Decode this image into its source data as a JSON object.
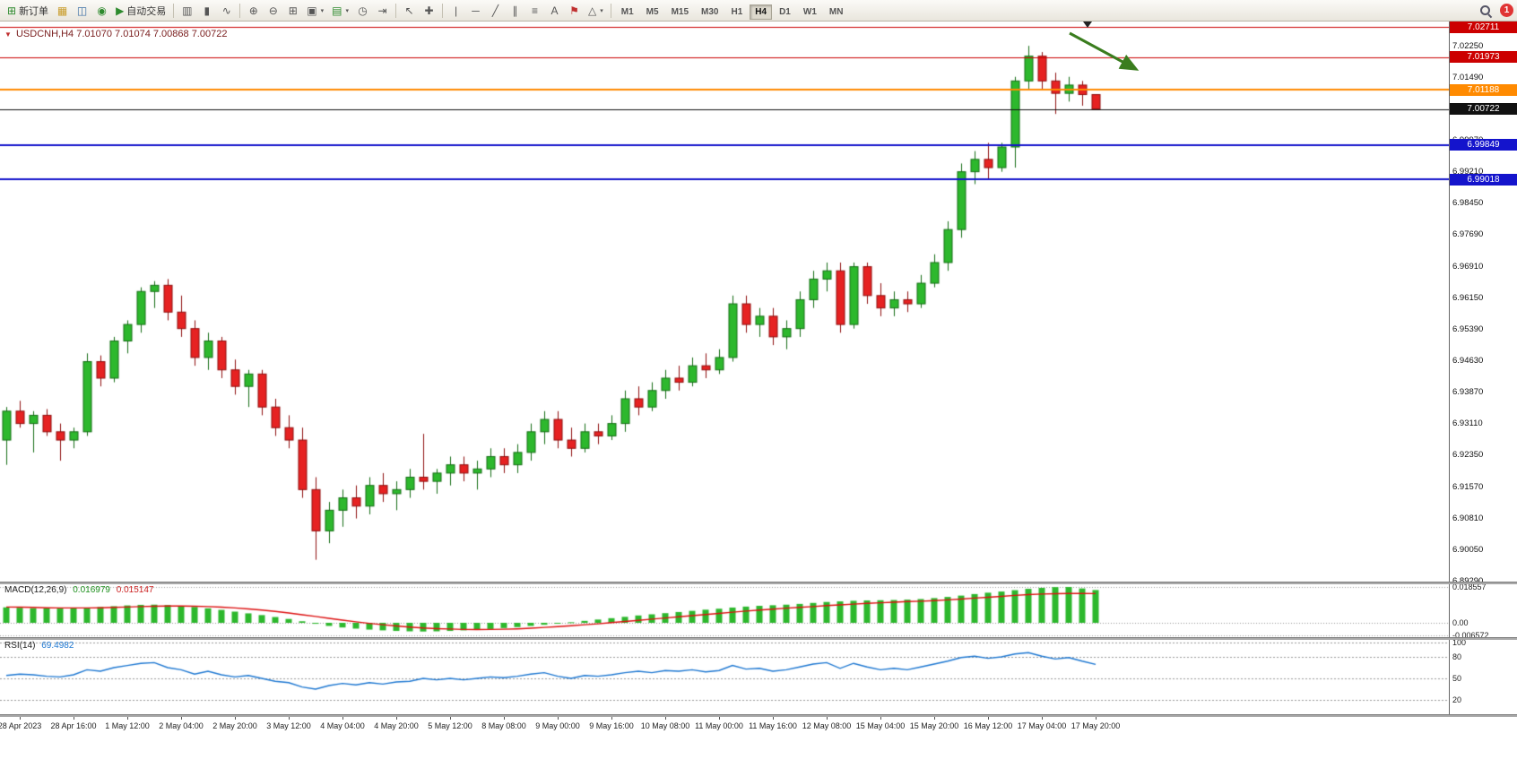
{
  "toolbar": {
    "new_order_label": "新订单",
    "autotrade_label": "自动交易",
    "timeframes": [
      "M1",
      "M5",
      "M15",
      "M30",
      "H1",
      "H4",
      "D1",
      "W1",
      "MN"
    ],
    "active_timeframe": "H4",
    "notification_count": "1",
    "icons": {
      "new_order": "⊞",
      "profile": "▦",
      "data_window": "◫",
      "market_watch": "◉",
      "autotrade": "▶",
      "bars_chart": "▥",
      "candle_chart": "▮",
      "line_chart": "∿",
      "zoom_in": "⊕",
      "zoom_out": "⊖",
      "tile_windows": "⊞",
      "cascade_windows": "▣",
      "new_chart": "▤",
      "clock": "◷",
      "chart_shift": "⇥",
      "cursor": "↖",
      "crosshair": "✚",
      "vertical_line": "|",
      "horizontal_line": "─",
      "trendline": "╱",
      "channel": "∥",
      "fibonacci": "≡",
      "text": "A",
      "label": "⚑",
      "shapes": "△",
      "caret": "▾"
    }
  },
  "chart": {
    "title_symbol": "USDCNH,H4",
    "title_ohlc": "7.01070 7.01074 7.00868 7.00722"
  },
  "price_scale": {
    "labels": [
      "7.02250",
      "7.01490",
      "7.00730",
      "6.99970",
      "6.99210",
      "6.98450",
      "6.97690",
      "6.96910",
      "6.96150",
      "6.95390",
      "6.94630",
      "6.93870",
      "6.93110",
      "6.92350",
      "6.91570",
      "6.90810",
      "6.90050",
      "6.89290"
    ]
  },
  "price_lines": [
    {
      "label": "7.02711",
      "value": 7.02711,
      "color": "#cc0000",
      "width": 1
    },
    {
      "label": "7.01973",
      "value": 7.01973,
      "color": "#cc0000",
      "width": 1
    },
    {
      "label": "7.01188",
      "value": 7.01188,
      "color": "#ff8a00",
      "width": 2
    },
    {
      "label": "7.00722",
      "value": 7.00722,
      "color": "#111111",
      "width": 1
    },
    {
      "label": "6.99849",
      "value": 6.99849,
      "color": "#1414cc",
      "width": 2
    },
    {
      "label": "6.99018",
      "value": 6.99018,
      "color": "#1414cc",
      "width": 2
    }
  ],
  "time_axis": {
    "labels": [
      "28 Apr 2023",
      "28 Apr 16:00",
      "1 May 12:00",
      "2 May 04:00",
      "2 May 20:00",
      "3 May 12:00",
      "4 May 04:00",
      "4 May 20:00",
      "5 May 12:00",
      "8 May 08:00",
      "9 May 00:00",
      "9 May 16:00",
      "10 May 08:00",
      "11 May 00:00",
      "11 May 16:00",
      "12 May 08:00",
      "15 May 04:00",
      "15 May 20:00",
      "16 May 12:00",
      "17 May 04:00",
      "17 May 20:00"
    ]
  },
  "macd": {
    "name": "MACD(12,26,9)",
    "value_main": "0.016979",
    "value_signal": "0.015147",
    "scale_labels": [
      "0.018557",
      "0.00",
      "-0.006572"
    ]
  },
  "rsi": {
    "name": "RSI(14)",
    "value": "69.4982",
    "scale_labels": [
      "100",
      "80",
      "50",
      "20"
    ]
  },
  "annotations": {
    "arrow_color": "#3a7d1e",
    "arrow_direction": "down-right"
  },
  "colors": {
    "bull": "#2db82d",
    "bull_border": "#156e15",
    "bear": "#e62222",
    "bear_border": "#8f0f0f",
    "macd_hist": "#2db82d",
    "macd_signal": "#dd1111",
    "rsi_line": "#1e78d2"
  },
  "chart_data": {
    "type": "candlestick",
    "symbol": "USDCNH",
    "timeframe": "H4",
    "title": "USDCNH,H4",
    "candles": [
      [
        6.927,
        6.935,
        6.921,
        6.934
      ],
      [
        6.934,
        6.9365,
        6.93,
        6.931
      ],
      [
        6.931,
        6.934,
        6.924,
        6.933
      ],
      [
        6.933,
        6.9345,
        6.928,
        6.929
      ],
      [
        6.929,
        6.931,
        6.922,
        6.927
      ],
      [
        6.927,
        6.93,
        6.925,
        6.929
      ],
      [
        6.929,
        6.948,
        6.928,
        6.946
      ],
      [
        6.946,
        6.9475,
        6.94,
        6.942
      ],
      [
        6.942,
        6.952,
        6.941,
        6.951
      ],
      [
        6.951,
        6.956,
        6.948,
        6.955
      ],
      [
        6.955,
        6.964,
        6.953,
        6.963
      ],
      [
        6.963,
        6.9655,
        6.959,
        6.9645
      ],
      [
        6.9645,
        6.966,
        6.956,
        6.958
      ],
      [
        6.958,
        6.962,
        6.952,
        6.954
      ],
      [
        6.954,
        6.956,
        6.945,
        6.947
      ],
      [
        6.947,
        6.953,
        6.944,
        6.951
      ],
      [
        6.951,
        6.952,
        6.942,
        6.944
      ],
      [
        6.944,
        6.9465,
        6.938,
        6.94
      ],
      [
        6.94,
        6.944,
        6.935,
        6.943
      ],
      [
        6.943,
        6.944,
        6.933,
        6.935
      ],
      [
        6.935,
        6.937,
        6.928,
        6.93
      ],
      [
        6.93,
        6.933,
        6.925,
        6.927
      ],
      [
        6.927,
        6.93,
        6.913,
        6.915
      ],
      [
        6.915,
        6.918,
        6.898,
        6.905
      ],
      [
        6.905,
        6.912,
        6.902,
        6.91
      ],
      [
        6.91,
        6.915,
        6.906,
        6.913
      ],
      [
        6.913,
        6.916,
        6.908,
        6.911
      ],
      [
        6.911,
        6.918,
        6.909,
        6.916
      ],
      [
        6.916,
        6.919,
        6.912,
        6.914
      ],
      [
        6.914,
        6.917,
        6.91,
        6.915
      ],
      [
        6.915,
        6.92,
        6.913,
        6.918
      ],
      [
        6.918,
        6.9285,
        6.915,
        6.917
      ],
      [
        6.917,
        6.92,
        6.914,
        6.919
      ],
      [
        6.919,
        6.923,
        6.916,
        6.921
      ],
      [
        6.921,
        6.923,
        6.917,
        6.919
      ],
      [
        6.919,
        6.922,
        6.915,
        6.92
      ],
      [
        6.92,
        6.925,
        6.918,
        6.923
      ],
      [
        6.923,
        6.925,
        6.919,
        6.921
      ],
      [
        6.921,
        6.926,
        6.919,
        6.924
      ],
      [
        6.924,
        6.931,
        6.922,
        6.929
      ],
      [
        6.929,
        6.934,
        6.926,
        6.932
      ],
      [
        6.932,
        6.934,
        6.925,
        6.927
      ],
      [
        6.927,
        6.93,
        6.923,
        6.925
      ],
      [
        6.925,
        6.931,
        6.924,
        6.929
      ],
      [
        6.929,
        6.931,
        6.926,
        6.928
      ],
      [
        6.928,
        6.933,
        6.927,
        6.931
      ],
      [
        6.931,
        6.939,
        6.929,
        6.937
      ],
      [
        6.937,
        6.94,
        6.933,
        6.935
      ],
      [
        6.935,
        6.941,
        6.934,
        6.939
      ],
      [
        6.939,
        6.944,
        6.937,
        6.942
      ],
      [
        6.942,
        6.945,
        6.939,
        6.941
      ],
      [
        6.941,
        6.947,
        6.94,
        6.945
      ],
      [
        6.945,
        6.948,
        6.942,
        6.944
      ],
      [
        6.944,
        6.949,
        6.943,
        6.947
      ],
      [
        6.947,
        6.962,
        6.946,
        6.96
      ],
      [
        6.96,
        6.962,
        6.953,
        6.955
      ],
      [
        6.955,
        6.959,
        6.952,
        6.957
      ],
      [
        6.957,
        6.959,
        6.95,
        6.952
      ],
      [
        6.952,
        6.956,
        6.949,
        6.954
      ],
      [
        6.954,
        6.963,
        6.952,
        6.961
      ],
      [
        6.961,
        6.968,
        6.959,
        6.966
      ],
      [
        6.966,
        6.97,
        6.963,
        6.968
      ],
      [
        6.968,
        6.97,
        6.953,
        6.955
      ],
      [
        6.955,
        6.97,
        6.954,
        6.969
      ],
      [
        6.969,
        6.97,
        6.96,
        6.962
      ],
      [
        6.962,
        6.965,
        6.957,
        6.959
      ],
      [
        6.959,
        6.963,
        6.957,
        6.961
      ],
      [
        6.961,
        6.963,
        6.958,
        6.96
      ],
      [
        6.96,
        6.967,
        6.959,
        6.965
      ],
      [
        6.965,
        6.972,
        6.964,
        6.97
      ],
      [
        6.97,
        6.98,
        6.968,
        6.978
      ],
      [
        6.978,
        6.994,
        6.976,
        6.992
      ],
      [
        6.992,
        6.997,
        6.989,
        6.995
      ],
      [
        6.995,
        6.999,
        6.99,
        6.993
      ],
      [
        6.993,
        6.999,
        6.992,
        6.998
      ],
      [
        6.998,
        7.015,
        6.993,
        7.014
      ],
      [
        7.014,
        7.0225,
        7.012,
        7.02
      ],
      [
        7.02,
        7.021,
        7.012,
        7.014
      ],
      [
        7.014,
        7.016,
        7.006,
        7.011
      ],
      [
        7.011,
        7.015,
        7.009,
        7.013
      ],
      [
        7.013,
        7.014,
        7.008,
        7.0107
      ],
      [
        7.0107,
        7.01074,
        7.00868,
        7.00722
      ]
    ],
    "macd_hist": [
      0.008,
      0.0078,
      0.0076,
      0.0075,
      0.0074,
      0.0076,
      0.0079,
      0.0082,
      0.0086,
      0.009,
      0.0093,
      0.0094,
      0.0092,
      0.0088,
      0.0082,
      0.0075,
      0.0067,
      0.0058,
      0.0049,
      0.004,
      0.003,
      0.002,
      0.0008,
      -0.0005,
      -0.0016,
      -0.0024,
      -0.003,
      -0.0035,
      -0.0039,
      -0.0042,
      -0.0044,
      -0.0045,
      -0.0044,
      -0.0042,
      -0.0039,
      -0.0036,
      -0.0032,
      -0.0027,
      -0.0022,
      -0.0016,
      -0.001,
      -0.0004,
      0.0003,
      0.001,
      0.0017,
      0.0024,
      0.0031,
      0.0038,
      0.0044,
      0.005,
      0.0056,
      0.0062,
      0.0068,
      0.0073,
      0.0079,
      0.0084,
      0.0088,
      0.0091,
      0.0094,
      0.0098,
      0.0103,
      0.0108,
      0.0111,
      0.0114,
      0.0116,
      0.0117,
      0.0118,
      0.012,
      0.0123,
      0.0128,
      0.0134,
      0.0141,
      0.0149,
      0.0156,
      0.0162,
      0.0169,
      0.0176,
      0.0181,
      0.0185,
      0.018557,
      0.0178,
      0.016979
    ],
    "macd_signal": [
      0.0082,
      0.0081,
      0.008,
      0.0078,
      0.0077,
      0.0077,
      0.0077,
      0.0078,
      0.008,
      0.0082,
      0.0084,
      0.0086,
      0.0087,
      0.0087,
      0.0086,
      0.0084,
      0.0081,
      0.0077,
      0.0072,
      0.0066,
      0.0059,
      0.0051,
      0.0042,
      0.0033,
      0.0023,
      0.0014,
      0.0005,
      -0.0003,
      -0.001,
      -0.0016,
      -0.0022,
      -0.0027,
      -0.003,
      -0.0032,
      -0.0034,
      -0.0035,
      -0.0034,
      -0.0033,
      -0.0031,
      -0.0028,
      -0.0024,
      -0.002,
      -0.0015,
      -0.001,
      -0.0005,
      0.0001,
      0.0007,
      0.0013,
      0.0019,
      0.0025,
      0.0031,
      0.0037,
      0.0043,
      0.0049,
      0.0055,
      0.0061,
      0.0066,
      0.0071,
      0.0076,
      0.008,
      0.0084,
      0.0089,
      0.0093,
      0.0097,
      0.0101,
      0.0104,
      0.0107,
      0.011,
      0.0112,
      0.0115,
      0.0119,
      0.0123,
      0.0128,
      0.0132,
      0.0137,
      0.0142,
      0.0146,
      0.0149,
      0.0151,
      0.0152,
      0.0152,
      0.015147
    ],
    "rsi_values": [
      54,
      56,
      55,
      53,
      52,
      55,
      62,
      60,
      65,
      68,
      71,
      72,
      65,
      62,
      56,
      60,
      55,
      52,
      54,
      50,
      46,
      44,
      38,
      35,
      40,
      43,
      41,
      44,
      42,
      45,
      46,
      50,
      48,
      50,
      48,
      50,
      52,
      51,
      53,
      56,
      58,
      53,
      50,
      54,
      53,
      55,
      58,
      60,
      58,
      61,
      60,
      62,
      59,
      61,
      68,
      63,
      64,
      60,
      62,
      66,
      70,
      72,
      64,
      71,
      66,
      62,
      64,
      62,
      66,
      70,
      74,
      79,
      81,
      78,
      80,
      84,
      86,
      81,
      77,
      79,
      74,
      69.4982
    ],
    "rsi_levels": [
      80,
      50,
      20
    ],
    "horizontal_lines": [
      7.02711,
      7.01973,
      7.01188,
      7.00722,
      6.99849,
      6.99018
    ]
  }
}
